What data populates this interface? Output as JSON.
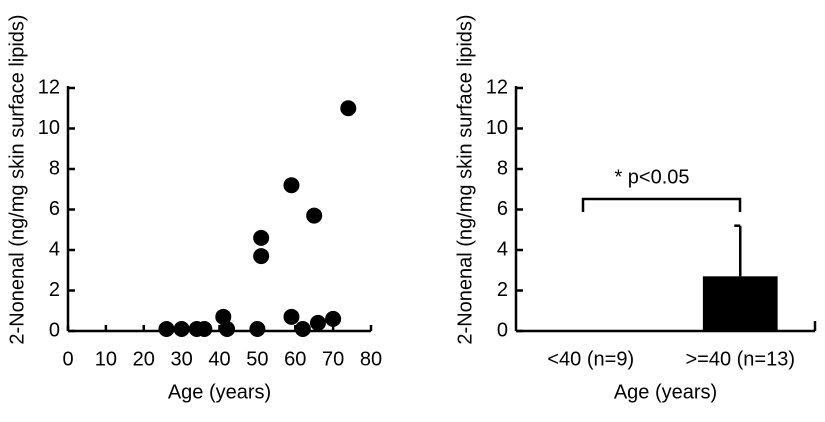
{
  "chart_data": [
    {
      "type": "scatter",
      "x_label": "Age (years)",
      "y_label": "2-Nonenal (ng/mg skin surface lipids)",
      "x": [
        26,
        30,
        34,
        36,
        41,
        42,
        50,
        51,
        51,
        59,
        59,
        62,
        65,
        66,
        70,
        74
      ],
      "values": [
        0.1,
        0.1,
        0.1,
        0.1,
        0.7,
        0.1,
        0.1,
        4.6,
        3.7,
        7.2,
        0.7,
        0.1,
        5.7,
        0.4,
        0.6,
        11
      ],
      "color": "#000000",
      "xlim": [
        0,
        80
      ],
      "xticks": [
        0,
        10,
        20,
        30,
        40,
        50,
        60,
        70,
        80
      ],
      "ylim": [
        0,
        12
      ],
      "yticks": [
        0,
        2,
        4,
        6,
        8,
        10,
        12
      ]
    },
    {
      "type": "bar",
      "x_label": "Age (years)",
      "y_label": "2-Nonenal (ng/mg skin surface lipids)",
      "categories": [
        "<40 (n=9)",
        ">=40 (n=13)"
      ],
      "values": [
        0,
        2.7
      ],
      "errors": [
        null,
        2.5
      ],
      "color": "#000000",
      "annotation": "* p<0.05",
      "ylim": [
        0,
        12
      ],
      "yticks": [
        0,
        2,
        4,
        6,
        8,
        10,
        12
      ]
    }
  ]
}
